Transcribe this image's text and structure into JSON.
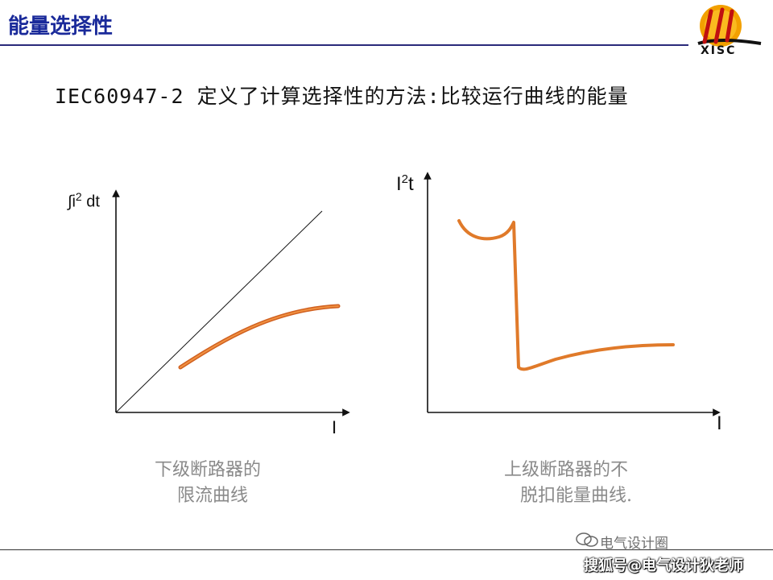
{
  "header": {
    "title": "能量选择性",
    "logo_text": "XISC"
  },
  "subtitle": "IEC60947-2 定义了计算选择性的方法:比较运行曲线的能量",
  "left_diagram": {
    "y_label_prefix": "∫i",
    "y_label_sup": "2",
    "y_label_suffix": " dt",
    "x_label": "I",
    "caption_line1": "下级断路器的",
    "caption_line2": "限流曲线"
  },
  "right_diagram": {
    "y_label_prefix": "I",
    "y_label_sup": "2",
    "y_label_suffix": "t",
    "x_label": "I",
    "caption_line1": "上级断路器的不",
    "caption_line2": "脱扣能量曲线."
  },
  "watermark": {
    "line1": "电气设计圈",
    "line2": "搜狐号@电气设计狄老师"
  },
  "colors": {
    "title": "#1a2a9a",
    "curve": "#e07a2a",
    "caption": "#8a8a8a"
  }
}
